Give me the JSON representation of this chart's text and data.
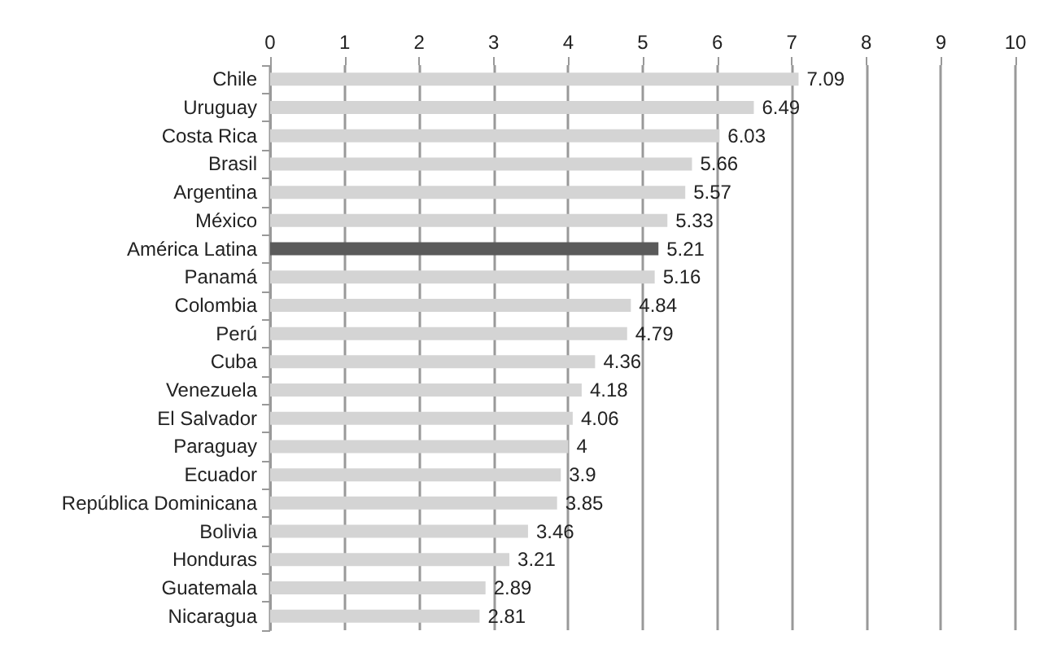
{
  "chart_data": {
    "type": "bar",
    "orientation": "horizontal",
    "categories": [
      "Chile",
      "Uruguay",
      "Costa Rica",
      "Brasil",
      "Argentina",
      "México",
      "América Latina",
      "Panamá",
      "Colombia",
      "Perú",
      "Cuba",
      "Venezuela",
      "El Salvador",
      "Paraguay",
      "Ecuador",
      "República Dominicana",
      "Bolivia",
      "Honduras",
      "Guatemala",
      "Nicaragua"
    ],
    "values": [
      7.09,
      6.49,
      6.03,
      5.66,
      5.57,
      5.33,
      5.21,
      5.16,
      4.84,
      4.79,
      4.36,
      4.18,
      4.06,
      4,
      3.9,
      3.85,
      3.46,
      3.21,
      2.89,
      2.81
    ],
    "colors": [
      "#d4d4d4",
      "#d4d4d4",
      "#d4d4d4",
      "#d4d4d4",
      "#d4d4d4",
      "#d4d4d4",
      "#5a5a5a",
      "#d4d4d4",
      "#d4d4d4",
      "#d4d4d4",
      "#d4d4d4",
      "#d4d4d4",
      "#d4d4d4",
      "#d4d4d4",
      "#d4d4d4",
      "#d4d4d4",
      "#d4d4d4",
      "#d4d4d4",
      "#d4d4d4",
      "#d4d4d4"
    ],
    "xlim": [
      0,
      10
    ],
    "xticks": [
      0,
      1,
      2,
      3,
      4,
      5,
      6,
      7,
      8,
      9,
      10
    ],
    "grid": "x",
    "data_labels": true
  }
}
